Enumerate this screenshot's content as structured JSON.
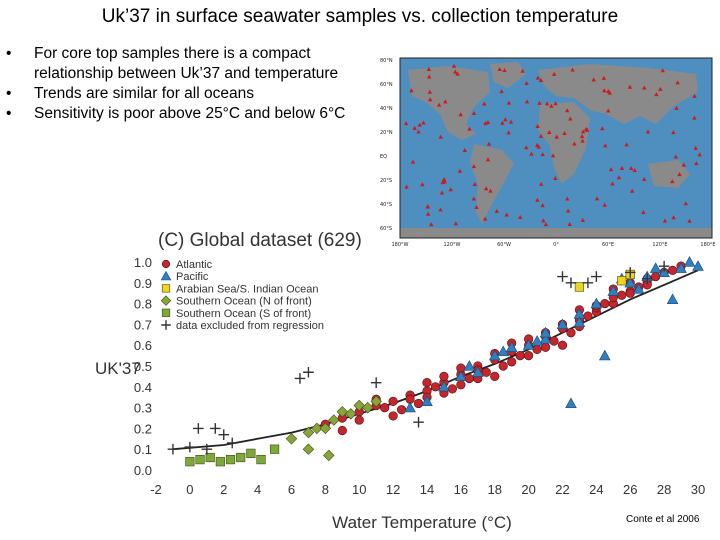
{
  "slide": {
    "title": "Uk’37 in surface seawater samples vs. collection temperature",
    "bullets": [
      "For core top samples there is a compact relationship between Uk’37 and temperature",
      "Trends are similar for all oceans",
      "Sensitivity is poor above 25°C and below 6°C"
    ],
    "bullet_glyph": "•",
    "credit": "Conte et al 2006"
  },
  "map": {
    "lat_labels": [
      "80°N",
      "60°N",
      "40°N",
      "20°N",
      "EQ",
      "20°S",
      "40°S",
      "60°S"
    ],
    "lon_labels": [
      "180°W",
      "120°W",
      "60°W",
      "0°",
      "60°E",
      "120°E",
      "180°E"
    ],
    "ocean_color": "#4f8fc0",
    "land_color": "#8a8a8a",
    "marker_color": "#cc1b1b"
  },
  "chart_data": {
    "type": "scatter",
    "title": "(C) Global dataset (629)",
    "xlabel": "Water Temperature (°C)",
    "ylabel": "UK'37",
    "xlim": [
      -2,
      30
    ],
    "ylim": [
      0.0,
      1.0
    ],
    "xticks": [
      "-2",
      "0",
      "2",
      "4",
      "6",
      "8",
      "10",
      "12",
      "14",
      "16",
      "18",
      "20",
      "22",
      "24",
      "26",
      "28",
      "30"
    ],
    "yticks": [
      "0.0",
      "0.1",
      "0.2",
      "0.3",
      "0.4",
      "0.5",
      "0.6",
      "0.7",
      "0.8",
      "0.9",
      "1.0"
    ],
    "grid": false,
    "legend_position": "top-left",
    "series": [
      {
        "name": "Atlantic",
        "marker": "circle",
        "color": "#c1272d",
        "x": [
          8,
          9,
          10,
          11,
          11.5,
          12,
          12.5,
          13,
          13.5,
          14,
          14.5,
          15,
          15.5,
          16,
          16.5,
          17,
          17.5,
          18,
          18.5,
          19,
          19.5,
          20,
          20.5,
          21,
          21.5,
          22,
          22.5,
          23,
          23.5,
          24,
          24.5,
          25,
          25.5,
          26,
          26.5,
          27,
          27.5,
          28,
          28.5,
          29,
          12,
          13,
          14,
          15,
          16,
          17,
          18,
          19,
          20,
          21,
          22,
          23,
          24,
          25,
          26,
          27,
          9,
          10,
          11,
          14,
          16,
          18,
          20,
          22,
          24,
          26,
          15,
          17,
          19,
          21,
          23,
          25,
          27
        ],
        "y": [
          0.22,
          0.25,
          0.28,
          0.31,
          0.3,
          0.33,
          0.29,
          0.36,
          0.32,
          0.38,
          0.4,
          0.42,
          0.39,
          0.46,
          0.44,
          0.5,
          0.47,
          0.53,
          0.5,
          0.57,
          0.55,
          0.6,
          0.58,
          0.64,
          0.62,
          0.68,
          0.66,
          0.72,
          0.74,
          0.76,
          0.8,
          0.8,
          0.84,
          0.86,
          0.88,
          0.9,
          0.93,
          0.95,
          0.96,
          0.98,
          0.26,
          0.34,
          0.35,
          0.45,
          0.49,
          0.44,
          0.56,
          0.52,
          0.63,
          0.66,
          0.7,
          0.69,
          0.78,
          0.83,
          0.85,
          0.92,
          0.19,
          0.24,
          0.34,
          0.42,
          0.41,
          0.45,
          0.55,
          0.6,
          0.79,
          0.9,
          0.37,
          0.48,
          0.61,
          0.59,
          0.77,
          0.87,
          0.89
        ]
      },
      {
        "name": "Pacific",
        "marker": "triangle",
        "color": "#2f7fc1",
        "x": [
          13,
          14,
          15,
          16,
          17,
          18,
          19,
          20,
          21,
          22,
          23,
          24,
          25,
          26,
          27,
          28,
          29,
          30,
          22.5,
          24.5,
          26.5,
          28.5,
          16.5,
          18.5,
          20.5,
          25.5,
          27.5,
          29.5,
          23,
          21
        ],
        "y": [
          0.3,
          0.33,
          0.4,
          0.45,
          0.47,
          0.55,
          0.59,
          0.6,
          0.63,
          0.7,
          0.75,
          0.8,
          0.86,
          0.9,
          0.93,
          0.95,
          0.97,
          0.98,
          0.32,
          0.55,
          0.87,
          0.82,
          0.5,
          0.57,
          0.62,
          0.92,
          0.97,
          1.0,
          0.71,
          0.66
        ]
      },
      {
        "name": "Arabian Sea/S. Indian Ocean",
        "marker": "square",
        "color": "#f2d21b",
        "x": [
          23,
          25.5,
          26
        ],
        "y": [
          0.88,
          0.91,
          0.94
        ]
      },
      {
        "name": "Southern Ocean (N of front)",
        "marker": "diamond",
        "color": "#8aa33a",
        "x": [
          6,
          7,
          7.5,
          8,
          8.5,
          9,
          9.5,
          10,
          10.5,
          11,
          7,
          8.2
        ],
        "y": [
          0.15,
          0.18,
          0.2,
          0.2,
          0.24,
          0.28,
          0.27,
          0.31,
          0.3,
          0.33,
          0.1,
          0.07
        ]
      },
      {
        "name": "Southern Ocean (S of front)",
        "marker": "square",
        "color": "#7fa83a",
        "x": [
          0,
          0.6,
          1.2,
          1.8,
          2.4,
          3,
          3.6,
          4.2,
          5
        ],
        "y": [
          0.04,
          0.05,
          0.06,
          0.04,
          0.05,
          0.06,
          0.08,
          0.05,
          0.1
        ]
      },
      {
        "name": "data excluded from regression",
        "marker": "plus",
        "color": "#333333",
        "x": [
          -1,
          0,
          0.5,
          1,
          1.5,
          2,
          2.5,
          6.5,
          7,
          11,
          13.5,
          22,
          22.5,
          23.5,
          24,
          26,
          27,
          28
        ],
        "y": [
          0.1,
          0.11,
          0.2,
          0.1,
          0.2,
          0.17,
          0.13,
          0.44,
          0.47,
          0.42,
          0.23,
          0.93,
          0.9,
          0.9,
          0.93,
          0.95,
          0.92,
          0.98
        ]
      }
    ],
    "regression_curve": {
      "x": [
        -1,
        2,
        4,
        6,
        8,
        10,
        12,
        14,
        16,
        18,
        20,
        22,
        24,
        26,
        28,
        30
      ],
      "y": [
        0.1,
        0.12,
        0.15,
        0.18,
        0.22,
        0.27,
        0.32,
        0.38,
        0.45,
        0.51,
        0.58,
        0.66,
        0.74,
        0.82,
        0.89,
        0.96
      ]
    }
  }
}
